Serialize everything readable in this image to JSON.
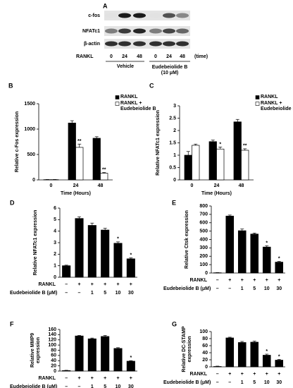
{
  "blot": {
    "title": "A",
    "rows": [
      "c-fos",
      "NFATc1",
      "β-actin"
    ],
    "treatment": "RANKL",
    "lanes": [
      "0",
      "24",
      "48",
      "0",
      "24",
      "48"
    ],
    "unit": "(time)",
    "groups": [
      "Vehicle",
      "Eudebeiolide B (10 μM)"
    ]
  },
  "chart_data": [
    {
      "type": "bar",
      "title": "B",
      "y_label": "Relative c-Fos expression",
      "x_label": "Time (Hours)",
      "categories": [
        "0",
        "24",
        "48"
      ],
      "ylim": [
        0,
        1500
      ],
      "yticks": [
        0,
        500,
        1000,
        1500
      ],
      "series": [
        {
          "name": "RANKL",
          "color": "#000000",
          "values": [
            5,
            1120,
            820
          ],
          "errors": [
            3,
            45,
            30
          ]
        },
        {
          "name": "RANKL + Eudebeiolide B",
          "color": "#ffffff",
          "values": [
            5,
            640,
            130
          ],
          "errors": [
            3,
            65,
            15
          ],
          "significance": [
            null,
            "**",
            "**"
          ]
        }
      ]
    },
    {
      "type": "bar",
      "title": "C",
      "y_label": "Relative NFATc1 expression",
      "x_label": "Time (Hours)",
      "categories": [
        "0",
        "24",
        "48"
      ],
      "ylim": [
        0,
        3
      ],
      "yticks": [
        0,
        0.5,
        1,
        1.5,
        2,
        2.5,
        3
      ],
      "series": [
        {
          "name": "RANKL",
          "color": "#000000",
          "values": [
            1.0,
            1.55,
            2.35
          ],
          "errors": [
            0.15,
            0.06,
            0.1
          ]
        },
        {
          "name": "RANKL + Eudebeiolide B",
          "color": "#ffffff",
          "values": [
            1.4,
            1.25,
            1.2
          ],
          "errors": [
            0.05,
            0.08,
            0.06
          ],
          "significance": [
            null,
            "*",
            "**"
          ]
        }
      ]
    },
    {
      "type": "bar",
      "title": "D",
      "y_label": "Relative NFATc1 expression",
      "ylim": [
        0,
        6
      ],
      "yticks": [
        0,
        1,
        2,
        3,
        4,
        5,
        6
      ],
      "color": "#000000",
      "values": [
        1.0,
        5.1,
        4.5,
        4.1,
        2.95,
        1.6
      ],
      "errors": [
        0.05,
        0.15,
        0.2,
        0.15,
        0.12,
        0.08
      ],
      "significance": [
        null,
        null,
        null,
        null,
        "*",
        "*"
      ],
      "condition_rows": [
        {
          "label": "RANKL",
          "values": [
            "–",
            "+",
            "+",
            "+",
            "+",
            "+"
          ]
        },
        {
          "label": "Eudebeiolide B (μM)",
          "values": [
            "–",
            "–",
            "1",
            "5",
            "10",
            "30"
          ]
        }
      ]
    },
    {
      "type": "bar",
      "title": "E",
      "y_label": "Relative Ctsk expression",
      "ylim": [
        0,
        800
      ],
      "yticks": [
        0,
        100,
        200,
        300,
        400,
        500,
        600,
        700,
        800
      ],
      "color": "#000000",
      "values": [
        3,
        680,
        505,
        465,
        310,
        130
      ],
      "errors": [
        2,
        12,
        20,
        12,
        15,
        8
      ],
      "significance": [
        null,
        null,
        null,
        null,
        "*",
        "*"
      ],
      "condition_rows": [
        {
          "label": "RANKL",
          "values": [
            "–",
            "+",
            "+",
            "+",
            "+",
            "+"
          ]
        },
        {
          "label": "Eudebeiolide B (μM)",
          "values": [
            "–",
            "–",
            "1",
            "5",
            "10",
            "30"
          ]
        }
      ]
    },
    {
      "type": "bar",
      "title": "F",
      "y_label": "Relative MMP9 expression",
      "ylim": [
        0,
        160
      ],
      "yticks": [
        0,
        20,
        40,
        60,
        80,
        100,
        120,
        140,
        160
      ],
      "color": "#000000",
      "values": [
        2,
        135,
        124,
        133,
        87,
        38
      ],
      "errors": [
        1,
        2,
        3,
        4,
        3,
        2
      ],
      "significance": [
        null,
        null,
        null,
        null,
        null,
        "*"
      ],
      "condition_rows": [
        {
          "label": "RANKL",
          "values": [
            "–",
            "+",
            "+",
            "+",
            "+",
            "+"
          ]
        },
        {
          "label": "Eudebeiolide B (μM)",
          "values": [
            "–",
            "–",
            "1",
            "5",
            "10",
            "30"
          ]
        }
      ]
    },
    {
      "type": "bar",
      "title": "G",
      "y_label": "Relative DC-STAMP expression",
      "ylim": [
        0,
        100
      ],
      "yticks": [
        0,
        20,
        40,
        60,
        80,
        100
      ],
      "color": "#000000",
      "values": [
        1,
        82,
        69,
        70,
        33,
        19
      ],
      "errors": [
        1,
        2,
        3,
        3,
        3,
        2
      ],
      "significance": [
        null,
        null,
        null,
        null,
        "*",
        "*"
      ],
      "condition_rows": [
        {
          "label": "RANKL",
          "values": [
            "–",
            "+",
            "+",
            "+",
            "+",
            "+"
          ]
        },
        {
          "label": "Eudebeiolide B (μM)",
          "values": [
            "–",
            "–",
            "1",
            "5",
            "10",
            "30"
          ]
        }
      ]
    }
  ]
}
